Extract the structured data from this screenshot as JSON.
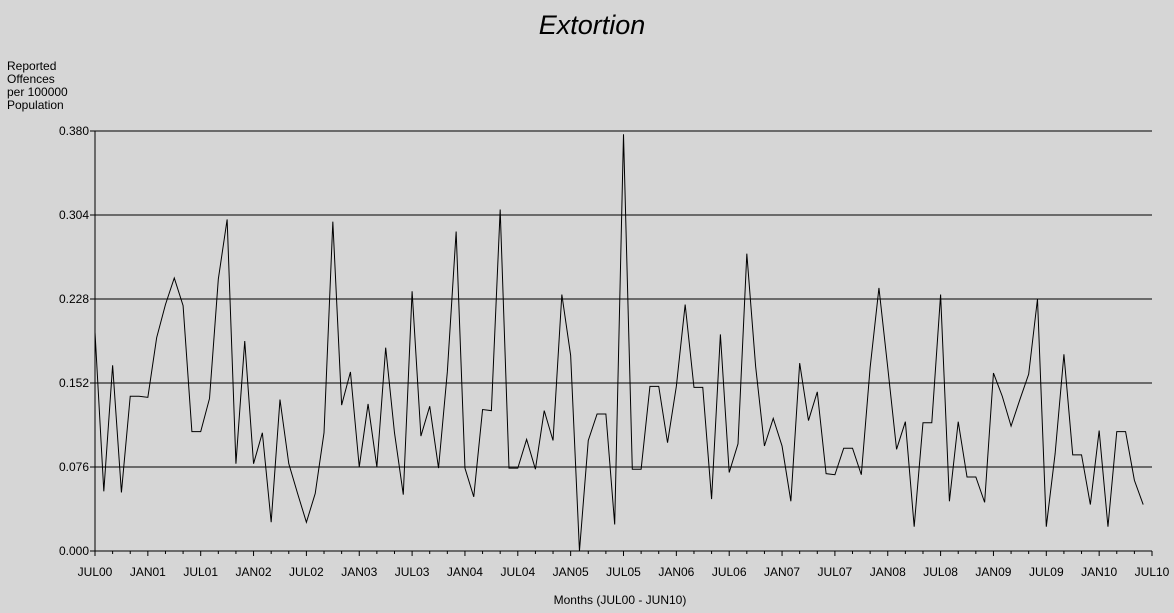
{
  "chart_data": {
    "type": "line",
    "title": "Extortion",
    "ylabel_lines": [
      "Reported",
      "Offences",
      "per 100000",
      "Population"
    ],
    "xlabel": "Months (JUL00 - JUN10)",
    "ylim": [
      0,
      0.38
    ],
    "yticks": [
      "0.000",
      "0.076",
      "0.152",
      "0.228",
      "0.304",
      "0.380"
    ],
    "ytick_values": [
      0,
      0.076,
      0.152,
      0.228,
      0.304,
      0.38
    ],
    "xticks": [
      "JUL00",
      "JAN01",
      "JUL01",
      "JAN02",
      "JUL02",
      "JAN03",
      "JUL03",
      "JAN04",
      "JUL04",
      "JAN05",
      "JUL05",
      "JAN06",
      "JUL06",
      "JAN07",
      "JUL07",
      "JAN08",
      "JUL08",
      "JAN09",
      "JUL09",
      "JAN10",
      "JUL10"
    ],
    "grid": "horizontal",
    "series": [
      {
        "values": [
          0.198,
          0.054,
          0.168,
          0.053,
          0.14,
          0.14,
          0.139,
          0.193,
          0.223,
          0.247,
          0.222,
          0.108,
          0.108,
          0.138,
          0.246,
          0.3,
          0.079,
          0.19,
          0.079,
          0.107,
          0.026,
          0.137,
          0.079,
          0.052,
          0.026,
          0.052,
          0.107,
          0.298,
          0.132,
          0.162,
          0.076,
          0.133,
          0.076,
          0.184,
          0.107,
          0.051,
          0.235,
          0.104,
          0.131,
          0.075,
          0.162,
          0.289,
          0.075,
          0.049,
          0.128,
          0.127,
          0.309,
          0.075,
          0.075,
          0.101,
          0.074,
          0.127,
          0.1,
          0.232,
          0.177,
          0.0,
          0.1,
          0.124,
          0.124,
          0.024,
          0.377,
          0.074,
          0.074,
          0.149,
          0.149,
          0.098,
          0.149,
          0.223,
          0.148,
          0.148,
          0.047,
          0.196,
          0.071,
          0.097,
          0.269,
          0.167,
          0.095,
          0.12,
          0.095,
          0.045,
          0.17,
          0.118,
          0.144,
          0.07,
          0.069,
          0.093,
          0.093,
          0.069,
          0.166,
          0.238,
          0.166,
          0.092,
          0.117,
          0.022,
          0.116,
          0.116,
          0.232,
          0.045,
          0.117,
          0.067,
          0.067,
          0.044,
          0.161,
          0.14,
          0.113,
          0.137,
          0.16,
          0.228,
          0.022,
          0.088,
          0.178,
          0.087,
          0.087,
          0.042,
          0.109,
          0.022,
          0.108,
          0.108,
          0.064,
          0.042
        ]
      }
    ]
  }
}
